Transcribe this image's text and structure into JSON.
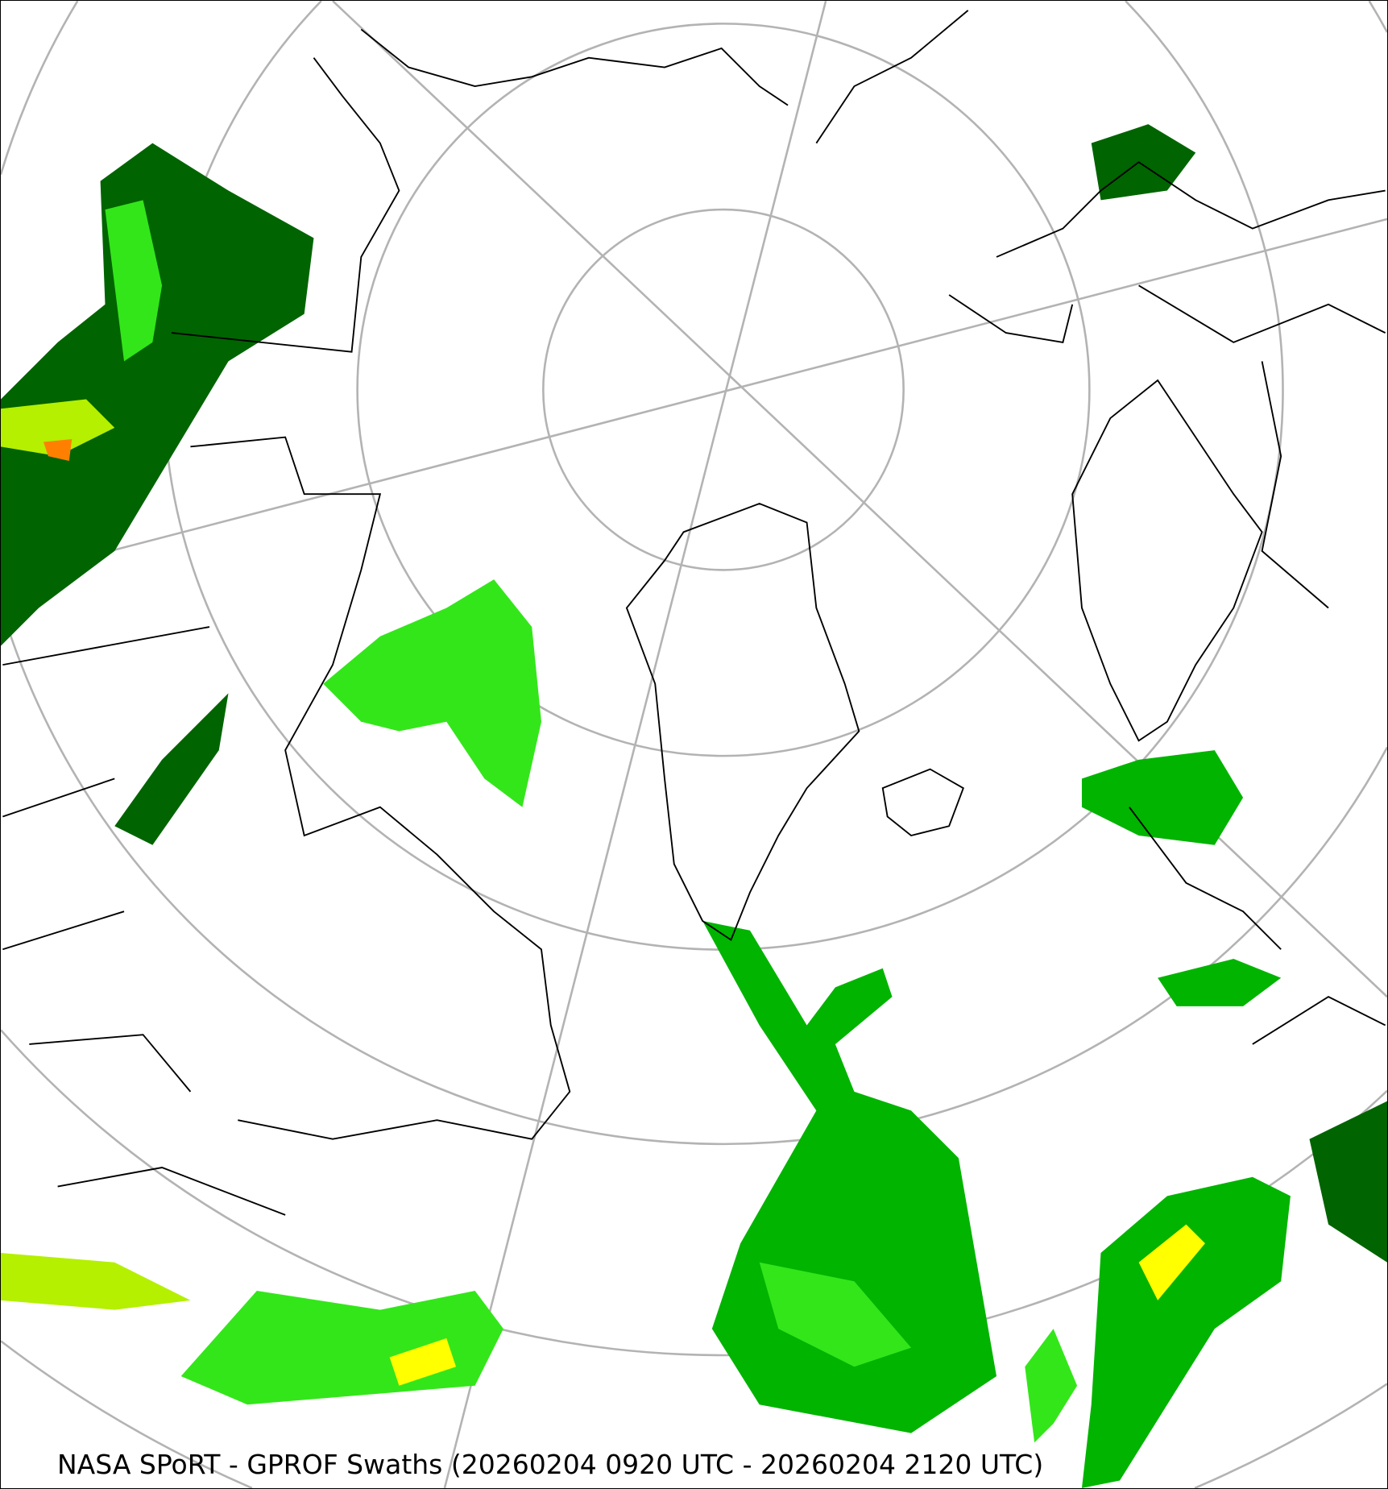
{
  "map": {
    "caption": "NASA SPoRT - GPROF Swaths (20260204 0920 UTC - 20260204 2120 UTC)",
    "projection": "north polar stereographic",
    "colors": {
      "graticule": "#b3b3b3",
      "coastline": "#000000",
      "precip_light": "#006400",
      "precip_moderate": "#00b400",
      "precip_heavy": "#33e61a",
      "precip_very_heavy": "#b4f000",
      "precip_intense": "#ffff00",
      "precip_extreme": "#ff8000"
    }
  }
}
